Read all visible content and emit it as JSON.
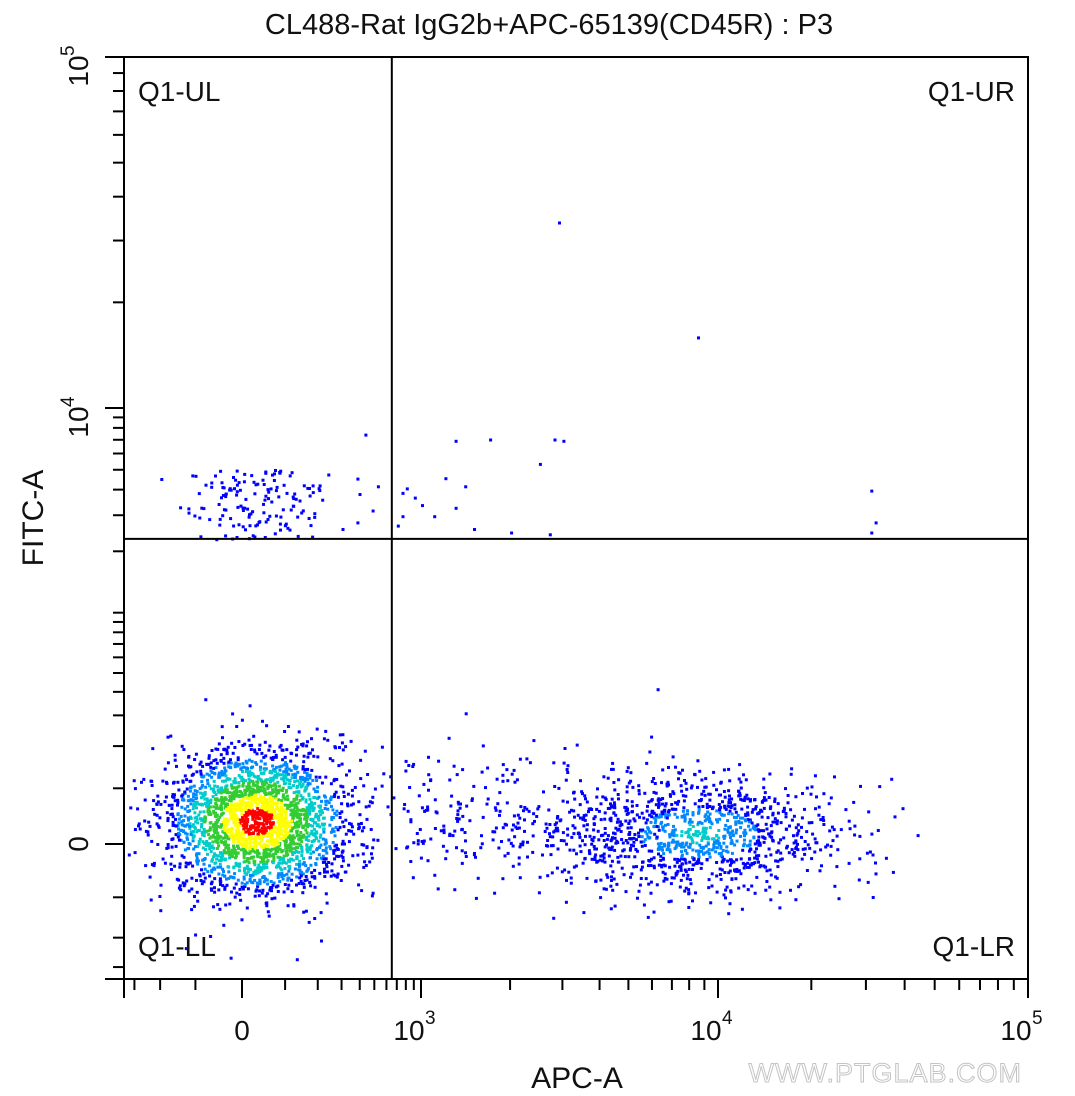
{
  "chart_data": {
    "type": "scatter",
    "subtype": "flow-cytometry-pseudocolor-density",
    "title": "CL488-Rat IgG2b+APC-65139(CD45R) : P3",
    "xlabel": "APC-A",
    "ylabel": "FITC-A",
    "x_scale": "biexponential",
    "y_scale": "biexponential",
    "x_range": [
      -350,
      100000
    ],
    "y_range": [
      -350,
      100000
    ],
    "x_ticks": [
      {
        "base": "0",
        "exp": "",
        "value": 0
      },
      {
        "base": "10",
        "exp": "3",
        "value": 1000
      },
      {
        "base": "10",
        "exp": "4",
        "value": 10000
      },
      {
        "base": "10",
        "exp": "5",
        "value": 100000
      }
    ],
    "y_ticks": [
      {
        "base": "0",
        "exp": "",
        "value": 0
      },
      {
        "base": "10",
        "exp": "4",
        "value": 10000
      },
      {
        "base": "10",
        "exp": "5",
        "value": 100000
      }
    ],
    "gates": {
      "x_threshold": 650,
      "y_threshold": 2300
    },
    "quadrants": {
      "ul": "Q1-UL",
      "ur": "Q1-UR",
      "ll": "Q1-LL",
      "lr": "Q1-LR"
    },
    "populations": [
      {
        "center_x": 30,
        "center_y": 40,
        "approx_events": 2500
      },
      {
        "center_x": 8500,
        "center_y": 20,
        "approx_events": 1100
      }
    ],
    "density_colors": [
      "#0000ff",
      "#0088ff",
      "#00cccc",
      "#33cc33",
      "#ffff00",
      "#ff0000"
    ],
    "grid": false,
    "legend": "none"
  },
  "watermark": "WWW.PTGLAB.COM"
}
